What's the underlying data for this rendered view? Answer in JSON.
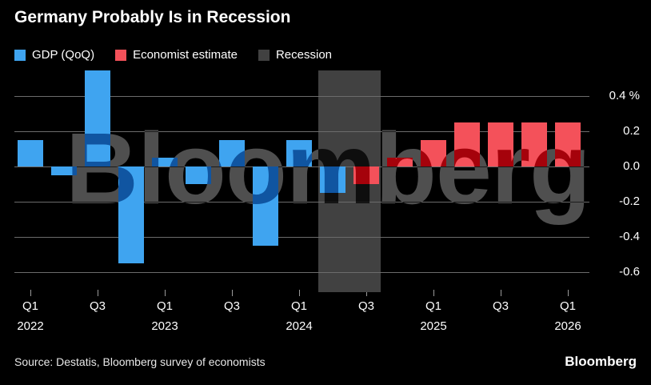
{
  "title": "Germany Probably Is in Recession",
  "legend": {
    "items": [
      {
        "label": "GDP (QoQ)",
        "key": "actual"
      },
      {
        "label": "Economist estimate",
        "key": "estimate"
      },
      {
        "label": "Recession",
        "key": "recession"
      }
    ]
  },
  "colors": {
    "actual": "#3FA4F0",
    "estimate": "#F4515A",
    "recession": "#414141",
    "grid": "#6B6B6B",
    "tick": "#9A9A9A",
    "watermark": "#4F4F4F",
    "background": "#000000",
    "text": "#FFFFFF"
  },
  "watermark_text": "Bloomberg",
  "source_text": "Source: Destatis, Bloomberg survey of economists",
  "brand_logo": "Bloomberg",
  "chart_data": {
    "type": "bar",
    "title": "Germany Probably Is in Recession",
    "unit": "%",
    "ylim": [
      -0.7,
      0.55
    ],
    "grid": true,
    "legend_position": "top",
    "y_axis_side": "right",
    "series_meta": [
      {
        "key": "actual",
        "name": "GDP (QoQ)",
        "color": "#3FA4F0"
      },
      {
        "key": "estimate",
        "name": "Economist estimate",
        "color": "#F4515A"
      }
    ],
    "yticks": [
      {
        "value": 0.4,
        "label": "0.4 %"
      },
      {
        "value": 0.2,
        "label": "0.2"
      },
      {
        "value": 0.0,
        "label": "0.0"
      },
      {
        "value": -0.2,
        "label": "-0.2"
      },
      {
        "value": -0.4,
        "label": "-0.4"
      },
      {
        "value": -0.6,
        "label": "-0.6"
      }
    ],
    "bars": [
      {
        "quarter": "Q1 2022",
        "value": 0.15,
        "series": "actual"
      },
      {
        "quarter": "Q2 2022",
        "value": -0.05,
        "series": "actual"
      },
      {
        "quarter": "Q3 2022",
        "value": 0.6,
        "series": "actual"
      },
      {
        "quarter": "Q4 2022",
        "value": -0.55,
        "series": "actual"
      },
      {
        "quarter": "Q1 2023",
        "value": 0.05,
        "series": "actual"
      },
      {
        "quarter": "Q2 2023",
        "value": -0.1,
        "series": "actual"
      },
      {
        "quarter": "Q3 2023",
        "value": 0.15,
        "series": "actual"
      },
      {
        "quarter": "Q4 2023",
        "value": -0.45,
        "series": "actual"
      },
      {
        "quarter": "Q1 2024",
        "value": 0.15,
        "series": "actual"
      },
      {
        "quarter": "Q2 2024",
        "value": -0.15,
        "series": "actual"
      },
      {
        "quarter": "Q3 2024",
        "value": -0.1,
        "series": "estimate"
      },
      {
        "quarter": "Q4 2024",
        "value": 0.05,
        "series": "estimate"
      },
      {
        "quarter": "Q1 2025",
        "value": 0.15,
        "series": "estimate"
      },
      {
        "quarter": "Q2 2025",
        "value": 0.25,
        "series": "estimate"
      },
      {
        "quarter": "Q3 2025",
        "value": 0.25,
        "series": "estimate"
      },
      {
        "quarter": "Q4 2025",
        "value": 0.25,
        "series": "estimate"
      },
      {
        "quarter": "Q1 2026",
        "value": 0.25,
        "series": "estimate"
      }
    ],
    "xticks": [
      {
        "index": 0,
        "label": "Q1",
        "year": "2022"
      },
      {
        "index": 2,
        "label": "Q3"
      },
      {
        "index": 4,
        "label": "Q1",
        "year": "2023"
      },
      {
        "index": 6,
        "label": "Q3"
      },
      {
        "index": 8,
        "label": "Q1",
        "year": "2024"
      },
      {
        "index": 10,
        "label": "Q3"
      },
      {
        "index": 12,
        "label": "Q1",
        "year": "2025"
      },
      {
        "index": 14,
        "label": "Q3"
      },
      {
        "index": 16,
        "label": "Q1",
        "year": "2026"
      }
    ],
    "recession_band": {
      "from_quarter": "Q2 2024",
      "to_quarter": "Q3 2024",
      "from_index": 9,
      "to_index": 10
    }
  }
}
